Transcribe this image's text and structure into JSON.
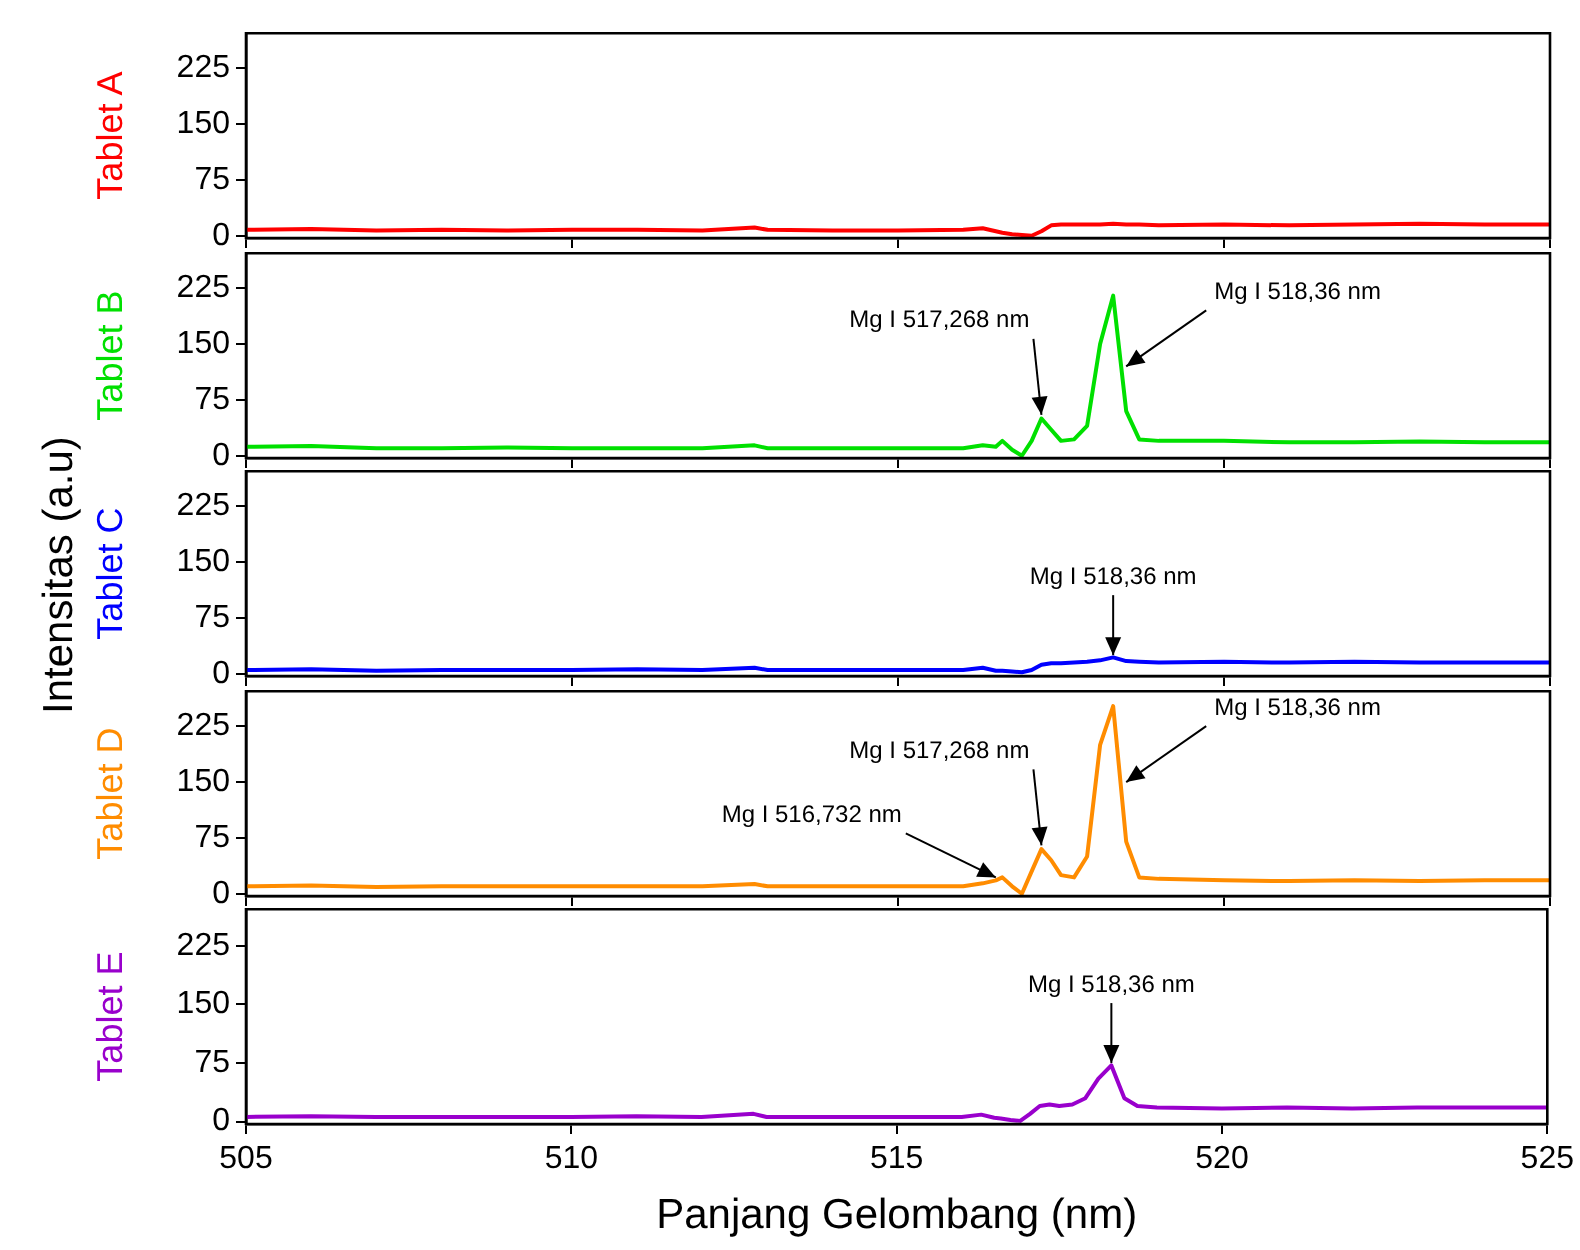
{
  "chart_data": [
    {
      "type": "line",
      "ylabel": "Tablet A",
      "tick_labels": "y",
      "xlim": [
        505,
        525
      ],
      "xticks": [
        505,
        510,
        515,
        520,
        525
      ],
      "ylim": [
        -3,
        272
      ],
      "yticks": [
        0,
        75,
        150,
        225
      ],
      "x": [
        505,
        506,
        507,
        508,
        509,
        510,
        511,
        512,
        512.8,
        513,
        514,
        515,
        516,
        516.3,
        516.5,
        516.6,
        516.75,
        516.9,
        517.05,
        517.2,
        517.35,
        517.5,
        517.7,
        517.9,
        518.1,
        518.3,
        518.5,
        518.7,
        519,
        520,
        521,
        522,
        523,
        524,
        525
      ],
      "series": [
        {
          "color": "#ff0000",
          "values": [
            8,
            9,
            7,
            8,
            7,
            8,
            8,
            7,
            11,
            8,
            7,
            7,
            8,
            10,
            6,
            4,
            2,
            1,
            0,
            6,
            14,
            15,
            15,
            15,
            15,
            16,
            15,
            15,
            14,
            15,
            14,
            15,
            16,
            15,
            15
          ]
        }
      ]
    },
    {
      "type": "line",
      "ylabel": "Tablet B",
      "tick_labels": "y",
      "xlim": [
        505,
        525
      ],
      "xticks": [
        505,
        510,
        515,
        520,
        525
      ],
      "ylim": [
        -3,
        272
      ],
      "yticks": [
        0,
        75,
        150,
        225
      ],
      "x": [
        505,
        506,
        507,
        508,
        509,
        510,
        511,
        512,
        512.8,
        513,
        514,
        515,
        516,
        516.3,
        516.5,
        516.6,
        516.75,
        516.9,
        517.05,
        517.2,
        517.35,
        517.5,
        517.7,
        517.9,
        518.1,
        518.3,
        518.5,
        518.7,
        519,
        520,
        521,
        522,
        523,
        524,
        525
      ],
      "series": [
        {
          "color": "#00e000",
          "values": [
            12,
            13,
            10,
            10,
            11,
            10,
            10,
            10,
            14,
            10,
            10,
            10,
            10,
            14,
            12,
            20,
            8,
            0,
            20,
            50,
            35,
            20,
            22,
            40,
            150,
            215,
            60,
            22,
            20,
            20,
            18,
            18,
            19,
            18,
            18
          ]
        }
      ],
      "annotations": [
        {
          "text": "Mg I 517,268 nm",
          "x": 517.2,
          "y": 55
        },
        {
          "text": "Mg I 518,36 nm",
          "x": 518.5,
          "y": 120
        }
      ]
    },
    {
      "type": "line",
      "ylabel": "Tablet C",
      "tick_labels": "y",
      "xlim": [
        505,
        525
      ],
      "xticks": [
        505,
        510,
        515,
        520,
        525
      ],
      "ylim": [
        -3,
        272
      ],
      "yticks": [
        0,
        75,
        150,
        225
      ],
      "x": [
        505,
        506,
        507,
        508,
        509,
        510,
        511,
        512,
        512.8,
        513,
        514,
        515,
        516,
        516.3,
        516.5,
        516.6,
        516.75,
        516.9,
        517.05,
        517.2,
        517.35,
        517.5,
        517.7,
        517.9,
        518.1,
        518.3,
        518.5,
        518.7,
        519,
        520,
        521,
        522,
        523,
        524,
        525
      ],
      "series": [
        {
          "color": "#0000ff",
          "values": [
            5,
            6,
            4,
            5,
            5,
            5,
            6,
            5,
            8,
            5,
            5,
            5,
            5,
            8,
            4,
            4,
            3,
            2,
            5,
            12,
            14,
            14,
            15,
            16,
            18,
            22,
            17,
            16,
            15,
            16,
            15,
            16,
            15,
            15,
            15
          ]
        }
      ],
      "annotations": [
        {
          "text": "Mg I 518,36 nm",
          "x": 518.3,
          "y": 25
        },
        "Intensitas (a.u)"
      ]
    },
    {
      "type": "line",
      "ylabel": "Tablet D",
      "tick_labels": "y",
      "xlim": [
        505,
        525
      ],
      "xticks": [
        505,
        510,
        515,
        520,
        525
      ],
      "ylim": [
        -3,
        272
      ],
      "yticks": [
        0,
        75,
        150,
        225
      ],
      "x": [
        505,
        506,
        507,
        508,
        509,
        510,
        511,
        512,
        512.8,
        513,
        514,
        515,
        516,
        516.3,
        516.5,
        516.6,
        516.75,
        516.9,
        517.05,
        517.2,
        517.35,
        517.5,
        517.7,
        517.9,
        518.1,
        518.3,
        518.5,
        518.7,
        519,
        520,
        521,
        522,
        523,
        524,
        525
      ],
      "series": [
        {
          "color": "#ff8c00",
          "values": [
            10,
            11,
            9,
            10,
            10,
            10,
            10,
            10,
            13,
            10,
            10,
            10,
            10,
            14,
            18,
            22,
            10,
            0,
            30,
            60,
            45,
            25,
            22,
            50,
            200,
            252,
            70,
            22,
            20,
            18,
            17,
            18,
            17,
            18,
            18
          ]
        }
      ],
      "annotations": [
        {
          "text": "Mg I 516,732 nm",
          "x": 516.5,
          "y": 22
        },
        {
          "text": "Mg I 517,268 nm",
          "x": 517.2,
          "y": 65
        },
        {
          "text": "Mg I 518,36 nm",
          "x": 518.5,
          "y": 150
        }
      ]
    },
    {
      "type": "line",
      "ylabel": "Tablet E",
      "xlabel": "Panjang Gelombang (nm)",
      "xlim": [
        505,
        525
      ],
      "xticks": [
        505,
        510,
        515,
        520,
        525
      ],
      "ylim": [
        -3,
        272
      ],
      "yticks": [
        0,
        75,
        150,
        225
      ],
      "x": [
        505,
        506,
        507,
        508,
        509,
        510,
        511,
        512,
        512.8,
        513,
        514,
        515,
        516,
        516.3,
        516.5,
        516.6,
        516.75,
        516.9,
        517.05,
        517.2,
        517.35,
        517.5,
        517.7,
        517.9,
        518.1,
        518.3,
        518.5,
        518.7,
        519,
        520,
        521,
        522,
        523,
        524,
        525
      ],
      "series": [
        {
          "color": "#9900cc",
          "values": [
            6,
            7,
            6,
            6,
            6,
            6,
            7,
            6,
            10,
            6,
            6,
            6,
            6,
            9,
            5,
            4,
            2,
            1,
            10,
            20,
            22,
            20,
            22,
            30,
            55,
            72,
            30,
            20,
            18,
            17,
            18,
            17,
            18,
            18,
            18
          ]
        }
      ],
      "annotations": [
        {
          "text": "Mg I 518,36 nm",
          "x": 518.3,
          "y": 75
        }
      ]
    }
  ]
}
